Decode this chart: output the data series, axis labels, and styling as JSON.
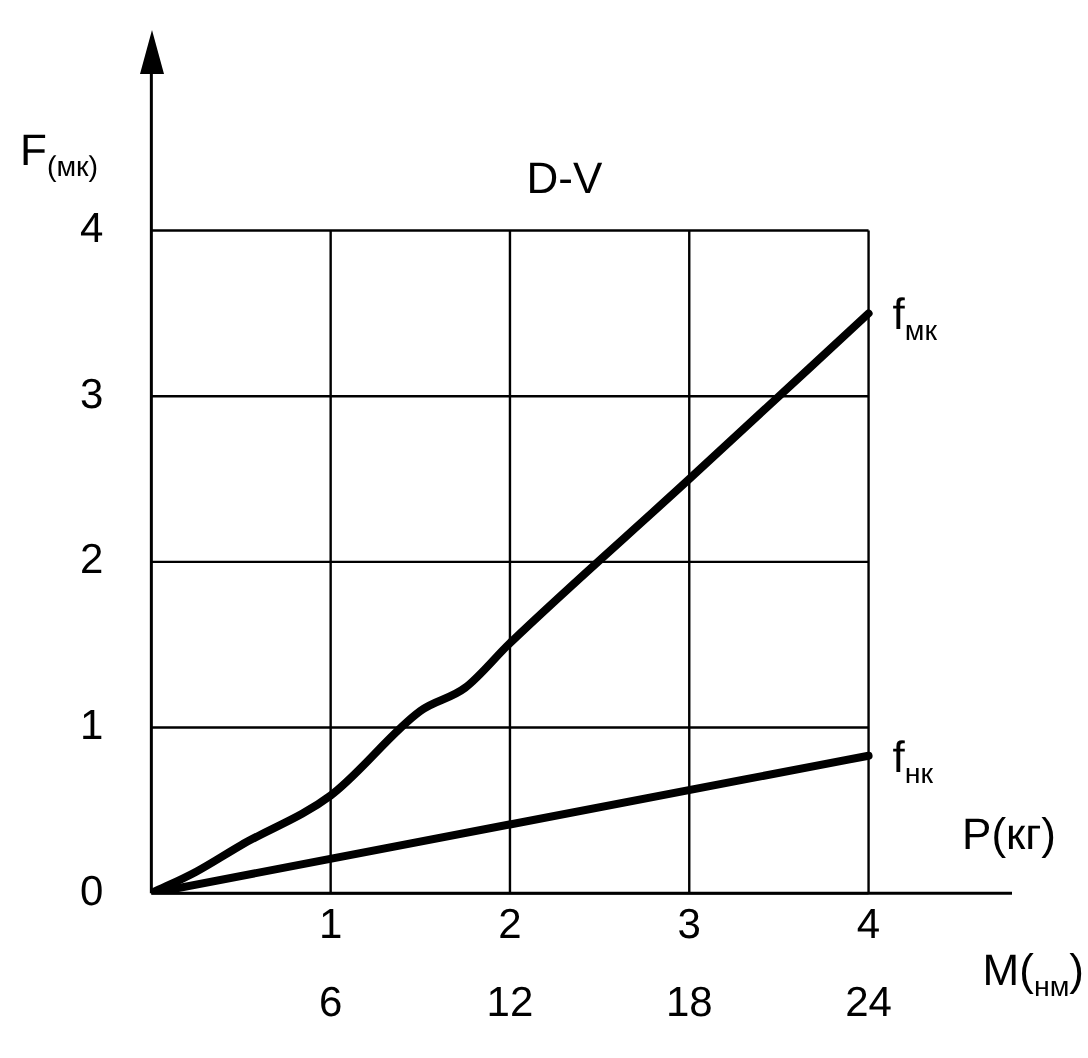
{
  "chart_data": {
    "type": "line",
    "title": "D-V",
    "xlabel": "M($_{нм}$)",
    "ylabel": "F$_{(мк)}$",
    "x2label": "P(кг)",
    "xlim": [
      0,
      4.8
    ],
    "xticks": [
      1,
      2,
      3,
      4
    ],
    "ylim": [
      0,
      4.95
    ],
    "yticks": [
      0,
      1,
      2,
      3,
      4
    ],
    "x2lim": [
      0,
      28.8
    ],
    "x2ticks": [
      6,
      12,
      18,
      24
    ],
    "grid": true,
    "legend": false,
    "marker": "none",
    "line_style": "solid",
    "series": [
      {
        "name": "f$_{мк}$",
        "color": "#000000",
        "x": [
          0,
          0.25,
          0.5,
          1,
          1.5,
          1.75,
          2,
          3,
          4
        ],
        "values": [
          0,
          0.13,
          0.29,
          0.59,
          1.1,
          1.24,
          1.51,
          2.5,
          3.5
        ]
      },
      {
        "name": "f$_{нк}$",
        "color": "#000000",
        "x": [
          0,
          4
        ],
        "values": [
          0,
          0.83
        ]
      }
    ]
  }
}
